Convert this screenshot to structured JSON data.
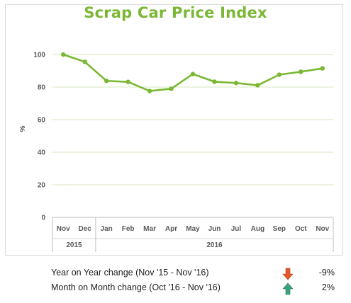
{
  "chart_data": {
    "type": "line",
    "title": "Scrap Car Price Index",
    "ylabel": "%",
    "xlabel": "",
    "ylim": [
      0,
      100
    ],
    "yticks": [
      0,
      20,
      40,
      60,
      80,
      100
    ],
    "categories": [
      "Nov",
      "Dec",
      "Jan",
      "Feb",
      "Mar",
      "Apr",
      "May",
      "Jun",
      "Jul",
      "Aug",
      "Sep",
      "Oct",
      "Nov"
    ],
    "year_groups": [
      {
        "label": "2015",
        "span": 2
      },
      {
        "label": "2016",
        "span": 11
      }
    ],
    "series": [
      {
        "values": [
          100,
          95.5,
          83.8,
          83.2,
          77.6,
          79.0,
          88.0,
          83.3,
          82.5,
          81.1,
          87.6,
          89.4,
          91.5
        ],
        "color": "#7ab733"
      }
    ],
    "grid": true,
    "legend": "none"
  },
  "summary": [
    {
      "label": "Year on Year change (Nov '15 - Nov '16)",
      "direction": "down",
      "value": "-9%",
      "color": "#e05a2b"
    },
    {
      "label": "Month on Month change (Oct '16 - Nov '16)",
      "direction": "up",
      "value": "2%",
      "color": "#3aa17e"
    }
  ],
  "colors": {
    "accent": "#7ab733",
    "grid": "#d7e7bf"
  }
}
